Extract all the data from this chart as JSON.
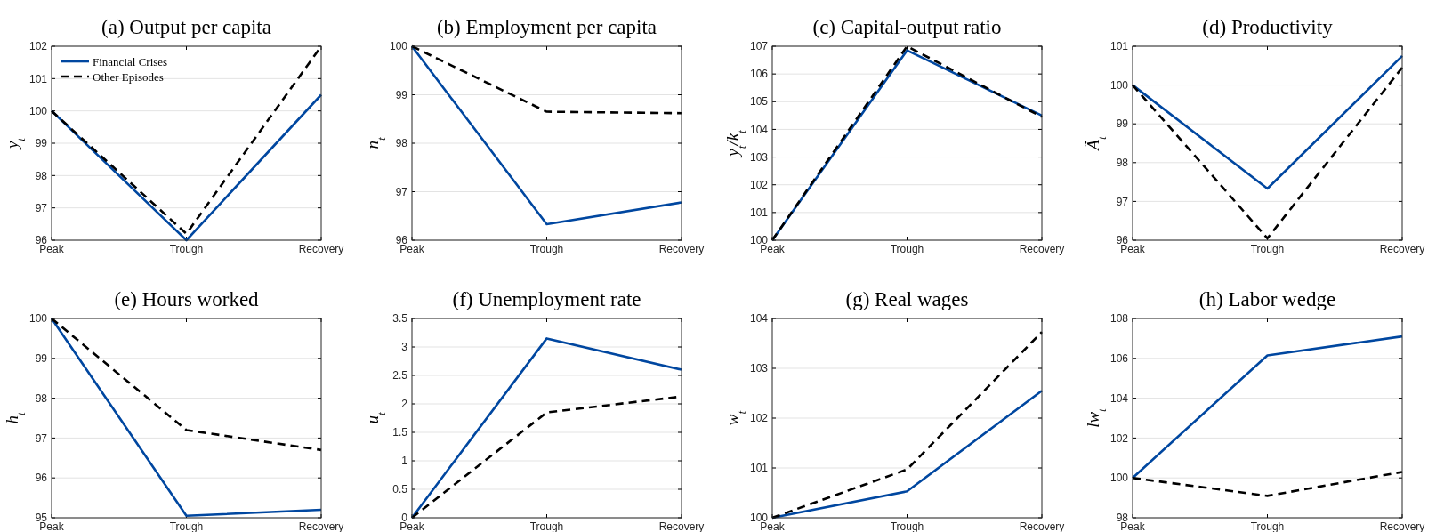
{
  "chart_data": [
    {
      "type": "line",
      "title": "(a) Output per capita",
      "ylabel": "y$_{t}$",
      "categories": [
        "Peak",
        "Trough",
        "Recovery"
      ],
      "ylim": [
        96,
        102
      ],
      "yticks": [
        96,
        97,
        98,
        99,
        100,
        101,
        102
      ],
      "grid": "y",
      "legend": "top left",
      "series": [
        {
          "name": "Financial Crises",
          "color": "#0047a0",
          "line_style": "solid",
          "values": [
            100,
            96,
            100.5
          ]
        },
        {
          "name": "Other Episodes",
          "color": "#000000",
          "line_style": "dashed",
          "values": [
            100,
            96.2,
            102
          ]
        }
      ]
    },
    {
      "type": "line",
      "title": "(b) Employment per capita",
      "ylabel": "n$_{t}$",
      "categories": [
        "Peak",
        "Trough",
        "Recovery"
      ],
      "ylim": [
        96,
        100
      ],
      "yticks": [
        96,
        97,
        98,
        99,
        100
      ],
      "grid": "y",
      "series": [
        {
          "color": "#0047a0",
          "line_style": "solid",
          "values": [
            100,
            96.33,
            96.78
          ]
        },
        {
          "color": "#000000",
          "line_style": "dashed",
          "values": [
            100,
            98.65,
            98.62
          ]
        }
      ]
    },
    {
      "type": "line",
      "title": "(c) Capital-output ratio",
      "ylabel": "y$_{t}$/k$_{t}$",
      "categories": [
        "Peak",
        "Trough",
        "Recovery"
      ],
      "ylim": [
        100,
        107
      ],
      "yticks": [
        100,
        101,
        102,
        103,
        104,
        105,
        106,
        107
      ],
      "grid": "y",
      "series": [
        {
          "color": "#0047a0",
          "line_style": "solid",
          "values": [
            100,
            106.85,
            104.5
          ]
        },
        {
          "color": "#000000",
          "line_style": "dashed",
          "values": [
            100,
            107,
            104.45
          ]
        }
      ]
    },
    {
      "type": "line",
      "title": "(d) Productivity",
      "ylabel": "Ã$_{t}$",
      "categories": [
        "Peak",
        "Trough",
        "Recovery"
      ],
      "ylim": [
        96,
        101
      ],
      "yticks": [
        96,
        97,
        98,
        99,
        100,
        101
      ],
      "grid": "y",
      "series": [
        {
          "color": "#0047a0",
          "line_style": "solid",
          "values": [
            100,
            97.33,
            100.75
          ]
        },
        {
          "color": "#000000",
          "line_style": "dashed",
          "values": [
            100,
            96.05,
            100.45
          ]
        }
      ]
    },
    {
      "type": "line",
      "title": "(e) Hours worked",
      "ylabel": "h$_{t}$",
      "categories": [
        "Peak",
        "Trough",
        "Recovery"
      ],
      "ylim": [
        95,
        100
      ],
      "yticks": [
        95,
        96,
        97,
        98,
        99,
        100
      ],
      "grid": "y",
      "series": [
        {
          "color": "#0047a0",
          "line_style": "solid",
          "values": [
            100,
            95.05,
            95.2
          ]
        },
        {
          "color": "#000000",
          "line_style": "dashed",
          "values": [
            100,
            97.2,
            96.7
          ]
        }
      ]
    },
    {
      "type": "line",
      "title": "(f) Unemployment rate",
      "ylabel": "u$_{t}$",
      "categories": [
        "Peak",
        "Trough",
        "Recovery"
      ],
      "ylim": [
        0,
        3.5
      ],
      "yticks": [
        0,
        0.5,
        1,
        1.5,
        2,
        2.5,
        3,
        3.5
      ],
      "grid": "y",
      "series": [
        {
          "color": "#0047a0",
          "line_style": "solid",
          "values": [
            0,
            3.15,
            2.6
          ]
        },
        {
          "color": "#000000",
          "line_style": "dashed",
          "values": [
            0,
            1.85,
            2.13
          ]
        }
      ]
    },
    {
      "type": "line",
      "title": "(g) Real wages",
      "ylabel": "w$_{t}$",
      "categories": [
        "Peak",
        "Trough",
        "Recovery"
      ],
      "ylim": [
        100,
        104
      ],
      "yticks": [
        100,
        101,
        102,
        103,
        104
      ],
      "grid": "y",
      "series": [
        {
          "color": "#0047a0",
          "line_style": "solid",
          "values": [
            100,
            100.53,
            102.55
          ]
        },
        {
          "color": "#000000",
          "line_style": "dashed",
          "values": [
            100,
            100.97,
            103.73
          ]
        }
      ]
    },
    {
      "type": "line",
      "title": "(h) Labor wedge",
      "ylabel": "lw$_{t}$",
      "categories": [
        "Peak",
        "Trough",
        "Recovery"
      ],
      "ylim": [
        98,
        108
      ],
      "yticks": [
        98,
        100,
        102,
        104,
        106,
        108
      ],
      "grid": "y",
      "series": [
        {
          "color": "#0047a0",
          "line_style": "solid",
          "values": [
            100,
            106.15,
            107.1
          ]
        },
        {
          "color": "#000000",
          "line_style": "dashed",
          "values": [
            100,
            99.1,
            100.3
          ]
        }
      ]
    }
  ]
}
